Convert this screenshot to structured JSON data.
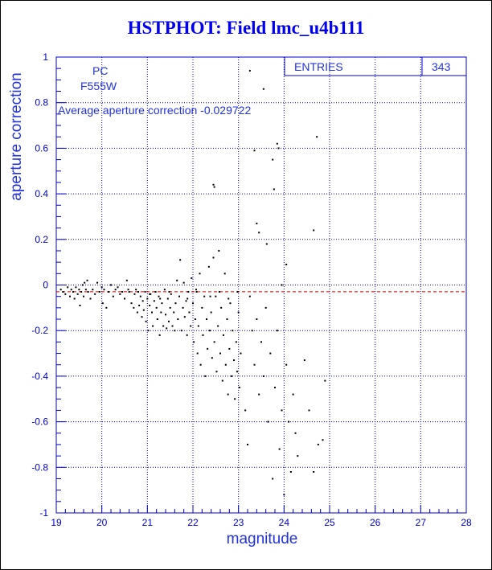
{
  "page_title": "HSTPHOT: Field lmc_u4b111",
  "annotations": {
    "camera": "PC",
    "filter": "F555W",
    "average_text": "Average aperture correction -0.029722"
  },
  "stats_box": {
    "label": "ENTRIES",
    "value": "343"
  },
  "colors": {
    "axis": "#0000cc",
    "title": "#0000ee",
    "grid": "#0000cc",
    "points": "#000000",
    "reference_line": "#cc0000"
  },
  "chart_data": {
    "type": "scatter",
    "title": "HSTPHOT: Field lmc_u4b111",
    "xlabel": "magnitude",
    "ylabel": "aperture correction",
    "xlim": [
      19,
      28
    ],
    "ylim": [
      -1,
      1
    ],
    "x_ticks": [
      "19",
      "20",
      "21",
      "22",
      "23",
      "24",
      "25",
      "26",
      "27",
      "28"
    ],
    "y_ticks": [
      "-1",
      "-0.8",
      "-0.6",
      "-0.4",
      "-0.2",
      "0",
      "0.2",
      "0.4",
      "0.6",
      "0.8",
      "1"
    ],
    "grid": true,
    "entries": 343,
    "reference_line": {
      "y": -0.029722,
      "style": "dashed"
    },
    "points": [
      [
        19.1,
        -0.02
      ],
      [
        19.15,
        -0.03
      ],
      [
        19.2,
        -0.04
      ],
      [
        19.25,
        -0.01
      ],
      [
        19.3,
        -0.05
      ],
      [
        19.33,
        -0.02
      ],
      [
        19.37,
        -0.03
      ],
      [
        19.4,
        -0.06
      ],
      [
        19.43,
        -0.01
      ],
      [
        19.47,
        -0.04
      ],
      [
        19.5,
        -0.02
      ],
      [
        19.52,
        -0.09
      ],
      [
        19.55,
        -0.03
      ],
      [
        19.58,
        0.0
      ],
      [
        19.6,
        -0.05
      ],
      [
        19.62,
        0.01
      ],
      [
        19.65,
        -0.02
      ],
      [
        19.68,
        0.02
      ],
      [
        19.7,
        -0.03
      ],
      [
        19.75,
        -0.06
      ],
      [
        19.8,
        -0.02
      ],
      [
        19.85,
        -0.04
      ],
      [
        19.9,
        0.01
      ],
      [
        19.95,
        -0.03
      ],
      [
        20.0,
        -0.01
      ],
      [
        20.02,
        -0.08
      ],
      [
        20.05,
        -0.02
      ],
      [
        20.1,
        -0.1
      ],
      [
        20.15,
        -0.03
      ],
      [
        20.2,
        0.0
      ],
      [
        20.25,
        -0.05
      ],
      [
        20.3,
        -0.02
      ],
      [
        20.35,
        -0.01
      ],
      [
        20.4,
        -0.04
      ],
      [
        20.45,
        -0.03
      ],
      [
        20.5,
        -0.06
      ],
      [
        20.55,
        0.02
      ],
      [
        20.58,
        -0.02
      ],
      [
        20.6,
        -0.03
      ],
      [
        20.65,
        -0.08
      ],
      [
        20.7,
        -0.1
      ],
      [
        20.72,
        -0.04
      ],
      [
        20.75,
        -0.02
      ],
      [
        20.78,
        -0.12
      ],
      [
        20.8,
        -0.03
      ],
      [
        20.82,
        -0.09
      ],
      [
        20.85,
        -0.05
      ],
      [
        20.88,
        -0.14
      ],
      [
        20.9,
        -0.07
      ],
      [
        20.92,
        -0.11
      ],
      [
        20.95,
        -0.03
      ],
      [
        20.97,
        -0.16
      ],
      [
        21.0,
        -0.06
      ],
      [
        21.02,
        -0.2
      ],
      [
        21.05,
        -0.09
      ],
      [
        21.07,
        -0.04
      ],
      [
        21.1,
        -0.12
      ],
      [
        21.12,
        -0.18
      ],
      [
        21.15,
        -0.07
      ],
      [
        21.18,
        -0.03
      ],
      [
        21.2,
        -0.1
      ],
      [
        21.22,
        -0.15
      ],
      [
        21.25,
        -0.05
      ],
      [
        21.27,
        -0.22
      ],
      [
        21.3,
        -0.12
      ],
      [
        21.32,
        -0.08
      ],
      [
        21.35,
        -0.18
      ],
      [
        21.38,
        -0.02
      ],
      [
        21.4,
        -0.13
      ],
      [
        21.42,
        -0.19
      ],
      [
        21.45,
        -0.06
      ],
      [
        21.47,
        -0.16
      ],
      [
        21.5,
        -0.1
      ],
      [
        21.52,
        -0.04
      ],
      [
        21.55,
        -0.18
      ],
      [
        21.58,
        -0.12
      ],
      [
        21.6,
        -0.2
      ],
      [
        21.62,
        -0.08
      ],
      [
        21.65,
        0.02
      ],
      [
        21.67,
        -0.15
      ],
      [
        21.7,
        -0.05
      ],
      [
        21.72,
        0.11
      ],
      [
        21.75,
        -0.2
      ],
      [
        21.78,
        -0.1
      ],
      [
        21.8,
        0.01
      ],
      [
        21.82,
        -0.14
      ],
      [
        21.85,
        -0.07
      ],
      [
        21.87,
        -0.22
      ],
      [
        21.9,
        -0.03
      ],
      [
        21.92,
        -0.12
      ],
      [
        21.95,
        -0.18
      ],
      [
        21.97,
        0.03
      ],
      [
        22.0,
        -0.08
      ],
      [
        22.02,
        -0.25
      ],
      [
        22.05,
        -0.15
      ],
      [
        22.07,
        -0.02
      ],
      [
        22.1,
        -0.3
      ],
      [
        22.12,
        -0.18
      ],
      [
        22.15,
        0.05
      ],
      [
        22.17,
        -0.35
      ],
      [
        22.2,
        -0.1
      ],
      [
        22.22,
        -0.22
      ],
      [
        22.25,
        -0.05
      ],
      [
        22.27,
        -0.4
      ],
      [
        22.3,
        -0.15
      ],
      [
        22.32,
        -0.28
      ],
      [
        22.35,
        0.08
      ],
      [
        22.37,
        -0.2
      ],
      [
        22.4,
        -0.12
      ],
      [
        22.42,
        -0.32
      ],
      [
        22.45,
        0.12
      ],
      [
        22.47,
        -0.25
      ],
      [
        22.5,
        -0.05
      ],
      [
        22.52,
        -0.38
      ],
      [
        22.55,
        -0.18
      ],
      [
        22.57,
        0.15
      ],
      [
        22.6,
        -0.3
      ],
      [
        22.62,
        -0.1
      ],
      [
        22.65,
        -0.42
      ],
      [
        22.67,
        -0.22
      ],
      [
        22.7,
        0.05
      ],
      [
        22.72,
        -0.35
      ],
      [
        22.75,
        -0.15
      ],
      [
        22.77,
        -0.48
      ],
      [
        22.8,
        -0.28
      ],
      [
        22.82,
        -0.08
      ],
      [
        22.85,
        -0.4
      ],
      [
        22.87,
        -0.2
      ],
      [
        22.9,
        -0.33
      ],
      [
        22.92,
        -0.5
      ],
      [
        22.95,
        -0.25
      ],
      [
        22.97,
        -0.38
      ],
      [
        23.0,
        -0.12
      ],
      [
        23.02,
        -0.45
      ],
      [
        23.05,
        -0.3
      ],
      [
        22.45,
        0.44
      ],
      [
        22.47,
        0.43
      ],
      [
        23.25,
        0.94
      ],
      [
        23.35,
        0.59
      ],
      [
        23.4,
        0.27
      ],
      [
        23.45,
        0.23
      ],
      [
        23.55,
        0.86
      ],
      [
        23.62,
        0.18
      ],
      [
        23.75,
        0.55
      ],
      [
        23.78,
        0.42
      ],
      [
        23.85,
        0.62
      ],
      [
        23.88,
        0.6
      ],
      [
        23.95,
        0.0
      ],
      [
        24.05,
        0.09
      ],
      [
        24.65,
        0.24
      ],
      [
        24.72,
        0.65
      ],
      [
        23.15,
        -0.55
      ],
      [
        23.2,
        -0.7
      ],
      [
        23.25,
        -0.05
      ],
      [
        23.3,
        -0.2
      ],
      [
        23.35,
        -0.35
      ],
      [
        23.4,
        -0.15
      ],
      [
        23.45,
        -0.48
      ],
      [
        23.5,
        -0.25
      ],
      [
        23.55,
        -0.4
      ],
      [
        23.6,
        -0.1
      ],
      [
        23.65,
        -0.6
      ],
      [
        23.7,
        -0.3
      ],
      [
        23.75,
        -0.85
      ],
      [
        23.8,
        -0.45
      ],
      [
        23.85,
        -0.2
      ],
      [
        23.9,
        -0.72
      ],
      [
        23.95,
        -0.55
      ],
      [
        24.0,
        -0.92
      ],
      [
        24.05,
        -0.35
      ],
      [
        24.1,
        -0.6
      ],
      [
        24.15,
        -0.82
      ],
      [
        24.2,
        -0.48
      ],
      [
        24.25,
        -0.65
      ],
      [
        24.3,
        -0.75
      ],
      [
        24.45,
        -0.33
      ],
      [
        24.55,
        -0.55
      ],
      [
        24.65,
        -0.82
      ],
      [
        24.75,
        -0.7
      ],
      [
        24.85,
        -0.68
      ],
      [
        24.9,
        -0.42
      ],
      [
        21.05,
        -0.04
      ],
      [
        21.28,
        -0.06
      ],
      [
        21.48,
        -0.03
      ],
      [
        21.88,
        -0.06
      ],
      [
        22.08,
        -0.03
      ],
      [
        22.38,
        -0.05
      ],
      [
        22.58,
        -0.03
      ],
      [
        22.78,
        -0.06
      ],
      [
        22.98,
        -0.03
      ]
    ]
  }
}
